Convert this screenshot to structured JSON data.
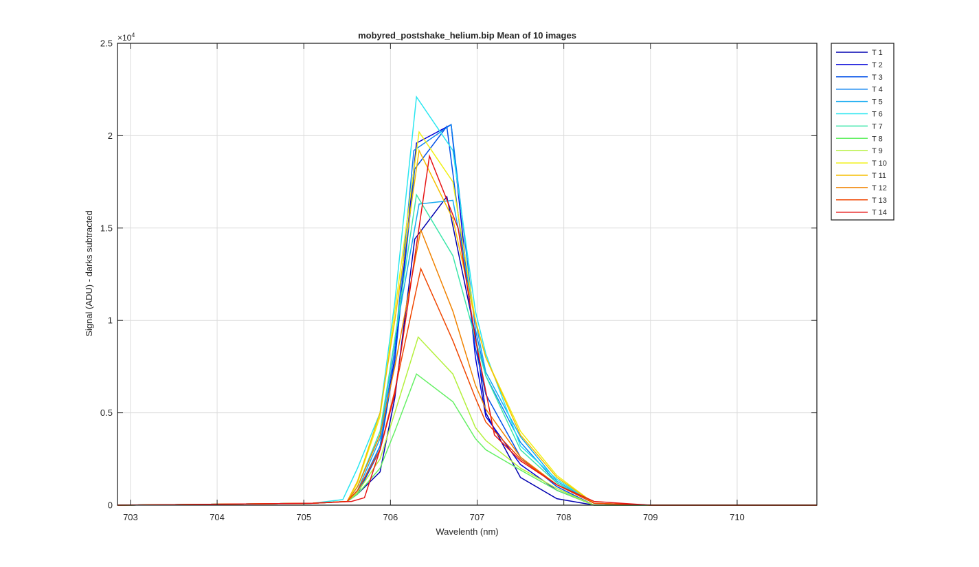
{
  "chart_data": {
    "type": "line",
    "title": "mobyred_postshake_helium.bip  Mean of 10 images",
    "xlabel": "Wavelenth (nm)",
    "ylabel": "Signal (ADU) - darks subtracted",
    "exponent_label": "×10",
    "exponent_power": "4",
    "xlim": [
      702.85,
      710.92
    ],
    "ylim": [
      0,
      25000
    ],
    "xticks": [
      703,
      704,
      705,
      706,
      707,
      708,
      709,
      710
    ],
    "xtick_labels": [
      "703",
      "704",
      "705",
      "706",
      "707",
      "708",
      "709",
      "710"
    ],
    "yticks": [
      0,
      5000,
      10000,
      15000,
      20000,
      25000
    ],
    "ytick_labels": [
      "0",
      "0.5",
      "1",
      "1.5",
      "2",
      "2.5"
    ],
    "grid": true,
    "legend_position": "outside-top-right",
    "series": [
      {
        "name": "T 1",
        "color": "#0000b0",
        "x": [
          702.85,
          705.1,
          705.5,
          705.62,
          705.88,
          706.05,
          706.28,
          706.65,
          706.98,
          707.1,
          707.5,
          707.92,
          708.35,
          709.0,
          710.92
        ],
        "y": [
          0,
          100,
          200,
          600,
          1800,
          5800,
          14400,
          16700,
          9200,
          5000,
          1500,
          350,
          0,
          0,
          0
        ]
      },
      {
        "name": "T 2",
        "color": "#0000d8",
        "x": [
          702.85,
          705.1,
          705.5,
          705.62,
          705.88,
          706.05,
          706.3,
          706.7,
          706.98,
          707.1,
          707.5,
          707.92,
          708.35,
          709.0,
          710.92
        ],
        "y": [
          0,
          100,
          200,
          600,
          3200,
          8000,
          19600,
          20600,
          8000,
          4800,
          2200,
          800,
          0,
          0,
          0
        ]
      },
      {
        "name": "T 3",
        "color": "#0050e8",
        "x": [
          702.85,
          705.1,
          705.5,
          705.62,
          705.88,
          706.05,
          706.28,
          706.65,
          706.98,
          707.1,
          707.5,
          707.92,
          708.35,
          709.0,
          710.92
        ],
        "y": [
          0,
          100,
          200,
          600,
          3000,
          7800,
          18200,
          20500,
          8500,
          6000,
          2600,
          1000,
          0,
          0,
          0
        ]
      },
      {
        "name": "T 4",
        "color": "#0a82f0",
        "x": [
          702.85,
          705.1,
          705.5,
          705.62,
          705.88,
          706.05,
          706.27,
          706.7,
          706.98,
          707.1,
          707.5,
          707.92,
          708.35,
          709.0,
          710.92
        ],
        "y": [
          0,
          100,
          200,
          700,
          3200,
          8500,
          19200,
          20600,
          9500,
          7000,
          3400,
          1200,
          100,
          0,
          0
        ]
      },
      {
        "name": "T 5",
        "color": "#14aaf0",
        "x": [
          702.85,
          705.1,
          705.5,
          705.62,
          705.88,
          706.05,
          706.33,
          706.72,
          706.98,
          707.1,
          707.5,
          707.92,
          708.35,
          709.0,
          710.92
        ],
        "y": [
          0,
          100,
          200,
          800,
          3600,
          9000,
          16300,
          16500,
          10000,
          7200,
          3700,
          1300,
          100,
          0,
          0
        ]
      },
      {
        "name": "T 6",
        "color": "#28e6f0",
        "x": [
          702.85,
          705.1,
          705.45,
          705.62,
          705.88,
          706.05,
          706.3,
          706.72,
          706.98,
          707.1,
          707.5,
          707.92,
          708.35,
          709.0,
          710.92
        ],
        "y": [
          0,
          100,
          300,
          2000,
          5000,
          11000,
          22100,
          19200,
          10500,
          8200,
          3200,
          1400,
          100,
          0,
          0
        ]
      },
      {
        "name": "T 7",
        "color": "#3ce6aa",
        "x": [
          702.85,
          705.1,
          705.5,
          705.62,
          705.88,
          706.05,
          706.3,
          706.72,
          706.98,
          707.1,
          707.5,
          707.92,
          708.35,
          709.0,
          710.92
        ],
        "y": [
          0,
          100,
          200,
          1000,
          4000,
          9000,
          16800,
          13500,
          9000,
          7000,
          3000,
          1200,
          100,
          0,
          0
        ]
      },
      {
        "name": "T 8",
        "color": "#64f064",
        "x": [
          702.85,
          705.1,
          705.5,
          705.62,
          705.88,
          706.05,
          706.3,
          706.72,
          706.98,
          707.1,
          707.5,
          707.92,
          708.35,
          709.0,
          710.92
        ],
        "y": [
          0,
          100,
          200,
          600,
          2000,
          4000,
          7100,
          5600,
          3600,
          3000,
          1900,
          800,
          0,
          0,
          0
        ]
      },
      {
        "name": "T 9",
        "color": "#b4f03c",
        "x": [
          702.85,
          705.1,
          705.5,
          705.62,
          705.88,
          706.05,
          706.32,
          706.72,
          706.98,
          707.1,
          707.5,
          707.92,
          708.35,
          709.0,
          710.92
        ],
        "y": [
          0,
          100,
          200,
          700,
          2500,
          5000,
          9100,
          7100,
          4200,
          3500,
          2000,
          900,
          0,
          0,
          0
        ]
      },
      {
        "name": "T 10",
        "color": "#f0f014",
        "x": [
          702.85,
          705.1,
          705.5,
          705.62,
          705.88,
          706.05,
          706.33,
          706.72,
          706.98,
          707.1,
          707.5,
          707.92,
          708.35,
          709.0,
          710.92
        ],
        "y": [
          0,
          100,
          200,
          1200,
          4800,
          10500,
          20200,
          17500,
          10000,
          8000,
          4000,
          1600,
          100,
          0,
          0
        ]
      },
      {
        "name": "T 11",
        "color": "#f5be00",
        "x": [
          702.85,
          705.1,
          705.5,
          705.62,
          705.88,
          706.05,
          706.33,
          706.72,
          706.98,
          707.1,
          707.5,
          707.92,
          708.35,
          709.0,
          710.92
        ],
        "y": [
          0,
          100,
          200,
          1300,
          5000,
          10000,
          19200,
          15500,
          10000,
          8000,
          3800,
          1500,
          100,
          0,
          0
        ]
      },
      {
        "name": "T 12",
        "color": "#f08200",
        "x": [
          702.85,
          705.1,
          705.5,
          705.62,
          705.88,
          706.05,
          706.35,
          706.72,
          706.98,
          707.1,
          707.5,
          707.92,
          708.35,
          709.0,
          710.92
        ],
        "y": [
          0,
          100,
          200,
          1000,
          3800,
          7500,
          14900,
          10500,
          6500,
          5200,
          2600,
          1100,
          100,
          0,
          0
        ]
      },
      {
        "name": "T 13",
        "color": "#f04600",
        "x": [
          702.85,
          705.1,
          705.5,
          705.62,
          705.88,
          706.05,
          706.35,
          706.72,
          706.98,
          707.1,
          707.5,
          707.92,
          708.35,
          709.0,
          710.92
        ],
        "y": [
          0,
          100,
          200,
          800,
          3000,
          6200,
          12800,
          8900,
          5800,
          4500,
          2500,
          1100,
          100,
          0,
          0
        ]
      },
      {
        "name": "T 14",
        "color": "#e61414",
        "x": [
          702.85,
          705.1,
          705.55,
          705.7,
          705.88,
          706.05,
          706.45,
          706.78,
          706.98,
          707.2,
          707.5,
          707.92,
          708.35,
          709.0,
          710.92
        ],
        "y": [
          0,
          100,
          200,
          400,
          3000,
          6000,
          18900,
          15000,
          9000,
          3800,
          2400,
          1100,
          200,
          0,
          0
        ]
      }
    ]
  }
}
